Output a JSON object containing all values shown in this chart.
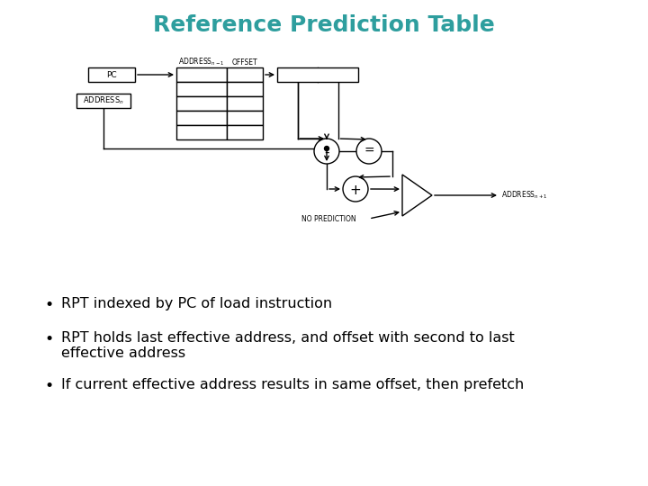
{
  "title": "Reference Prediction Table",
  "title_color": "#2E9E9E",
  "title_fontsize": 18,
  "bg_color": "#FFFFFF",
  "bullet_points": [
    "RPT indexed by PC of load instruction",
    "RPT holds last effective address, and offset with second to last\neffective address",
    "If current effective address results in same offset, then prefetch"
  ],
  "bullet_fontsize": 11.5,
  "diagram_color": "#000000",
  "lw": 1.0
}
